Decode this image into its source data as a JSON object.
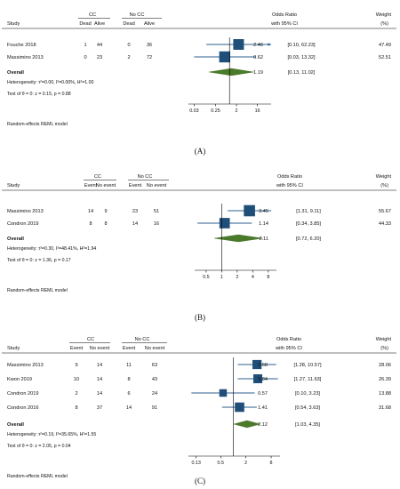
{
  "chart_data": [
    {
      "type": "forest",
      "panel_label": "(A)",
      "group_headers": [
        "CC",
        "No CC"
      ],
      "column_headers": [
        "Study",
        "Dead",
        "Alive",
        "Dead",
        "Alive"
      ],
      "effect_header": [
        "Odds Ratio",
        "with 95% CI"
      ],
      "weight_header": [
        "Weight",
        "(%)"
      ],
      "studies": [
        {
          "study": "Fouche 2018",
          "counts": [
            "1",
            "44",
            "0",
            "36"
          ],
          "or": 2.46,
          "lo": 0.1,
          "hi": 62.23,
          "or_text": "2.46",
          "ci_text": "[0.10,   62.23]",
          "weight": "47.49"
        },
        {
          "study": "Massimino 2013",
          "counts": [
            "0",
            "23",
            "2",
            "72"
          ],
          "or": 0.62,
          "lo": 0.03,
          "hi": 13.32,
          "or_text": "0.62",
          "ci_text": "[0.03,   13.32]",
          "weight": "52.51"
        }
      ],
      "overall": {
        "label": "Overall",
        "or": 1.19,
        "lo": 0.13,
        "hi": 11.02,
        "or_text": "1.19",
        "ci_text": "[0.13,   11.02]"
      },
      "heterogeneity": "Heterogeneity: τ²=0.00, I²=0.00%, H²=1.00",
      "test": "Test of θ = 0: z = 0.15, p = 0.88",
      "model_note": "Random-effects REML model",
      "xticks": [
        {
          "v": 0.03,
          "label": "0.03"
        },
        {
          "v": 0.25,
          "label": "0.25"
        },
        {
          "v": 2,
          "label": "2"
        },
        {
          "v": 16,
          "label": "16"
        }
      ],
      "xlim": [
        0.017,
        62
      ],
      "arrow_hi": [
        true,
        false
      ],
      "arrow_lo": [
        false,
        false
      ],
      "log_scale": true
    },
    {
      "type": "forest",
      "panel_label": "(B)",
      "group_headers": [
        "CC",
        "No CC"
      ],
      "column_headers": [
        "Study",
        "Event",
        "No event",
        "Event",
        "No event"
      ],
      "effect_header": [
        "Odds Ratio",
        "with 95% CI"
      ],
      "weight_header": [
        "Weight",
        "(%)"
      ],
      "studies": [
        {
          "study": "Massimino 2013",
          "counts": [
            "14",
            "9",
            "23",
            "51"
          ],
          "or": 3.45,
          "lo": 1.31,
          "hi": 9.11,
          "or_text": "3.45",
          "ci_text": "[1.31,   9.11]",
          "weight": "55.67"
        },
        {
          "study": "Condron 2019",
          "counts": [
            "8",
            "8",
            "14",
            "16"
          ],
          "or": 1.14,
          "lo": 0.34,
          "hi": 3.85,
          "or_text": "1.14",
          "ci_text": "[0.34,   3.85]",
          "weight": "44.33"
        }
      ],
      "overall": {
        "label": "Overall",
        "or": 2.11,
        "lo": 0.72,
        "hi": 6.2,
        "or_text": "2.11",
        "ci_text": "[0.72,   6.20]"
      },
      "heterogeneity": "Heterogeneity: τ²=0.30, I²=48.41%, H²=1.94",
      "test": "Test of θ = 0: z = 1.36, p = 0.17",
      "model_note": "Random-effects REML model",
      "xticks": [
        {
          "v": 0.5,
          "label": "0.5"
        },
        {
          "v": 1,
          "label": "1"
        },
        {
          "v": 2,
          "label": "2"
        },
        {
          "v": 4,
          "label": "4"
        },
        {
          "v": 8,
          "label": "8"
        }
      ],
      "xlim": [
        0.3,
        11.5
      ],
      "arrow_hi": [
        false,
        false
      ],
      "arrow_lo": [
        false,
        false
      ],
      "log_scale": true
    },
    {
      "type": "forest",
      "panel_label": "(C)",
      "group_headers": [
        "CC",
        "No CC"
      ],
      "column_headers": [
        "Study",
        "Event",
        "No event",
        "Event",
        "No event"
      ],
      "effect_header": [
        "Odds Ratio",
        "with 95% CI"
      ],
      "weight_header": [
        "Weight",
        "(%)"
      ],
      "studies": [
        {
          "study": "Massimino 2013",
          "counts": [
            "9",
            "14",
            "11",
            "63"
          ],
          "or": 3.68,
          "lo": 1.28,
          "hi": 10.57,
          "or_text": "3.68",
          "ci_text": "[1.28,   10.57]",
          "weight": "28.06"
        },
        {
          "study": "Kwon 2019",
          "counts": [
            "10",
            "14",
            "8",
            "43"
          ],
          "or": 3.84,
          "lo": 1.27,
          "hi": 11.63,
          "or_text": "3.84",
          "ci_text": "[1.27,   11.63]",
          "weight": "26.39"
        },
        {
          "study": "Condron 2019",
          "counts": [
            "2",
            "14",
            "6",
            "24"
          ],
          "or": 0.57,
          "lo": 0.1,
          "hi": 3.23,
          "or_text": "0.57",
          "ci_text": "[0.10,   3.23]",
          "weight": "13.88"
        },
        {
          "study": "Condron 2016",
          "counts": [
            "8",
            "37",
            "14",
            "91"
          ],
          "or": 1.41,
          "lo": 0.54,
          "hi": 3.63,
          "or_text": "1.41",
          "ci_text": "[0.54,   3.63]",
          "weight": "31.68"
        }
      ],
      "overall": {
        "label": "Overall",
        "or": 2.12,
        "lo": 1.03,
        "hi": 4.35,
        "or_text": "2.12",
        "ci_text": "[1.03,   4.35]"
      },
      "heterogeneity": "Heterogeneity: τ²=0.19, I²=35.65%, H²=1.55",
      "test": "Test of θ = 0: z = 2.05, p = 0.04",
      "model_note": "Random-effects REML model",
      "xticks": [
        {
          "v": 0.13,
          "label": "0.13"
        },
        {
          "v": 0.5,
          "label": "0.5"
        },
        {
          "v": 2,
          "label": "2"
        },
        {
          "v": 8,
          "label": "8"
        }
      ],
      "xlim": [
        0.085,
        13
      ],
      "arrow_hi": [
        false,
        false,
        false,
        false
      ],
      "arrow_lo": [
        false,
        false,
        false,
        false
      ],
      "log_scale": true
    }
  ],
  "colors": {
    "square": "#1f4e79",
    "ci_line": "#2e5f8f",
    "diamond": "#4a7a2a",
    "diamond_edge": "#3d6b22",
    "axis": "#000000",
    "text": "#111111"
  }
}
